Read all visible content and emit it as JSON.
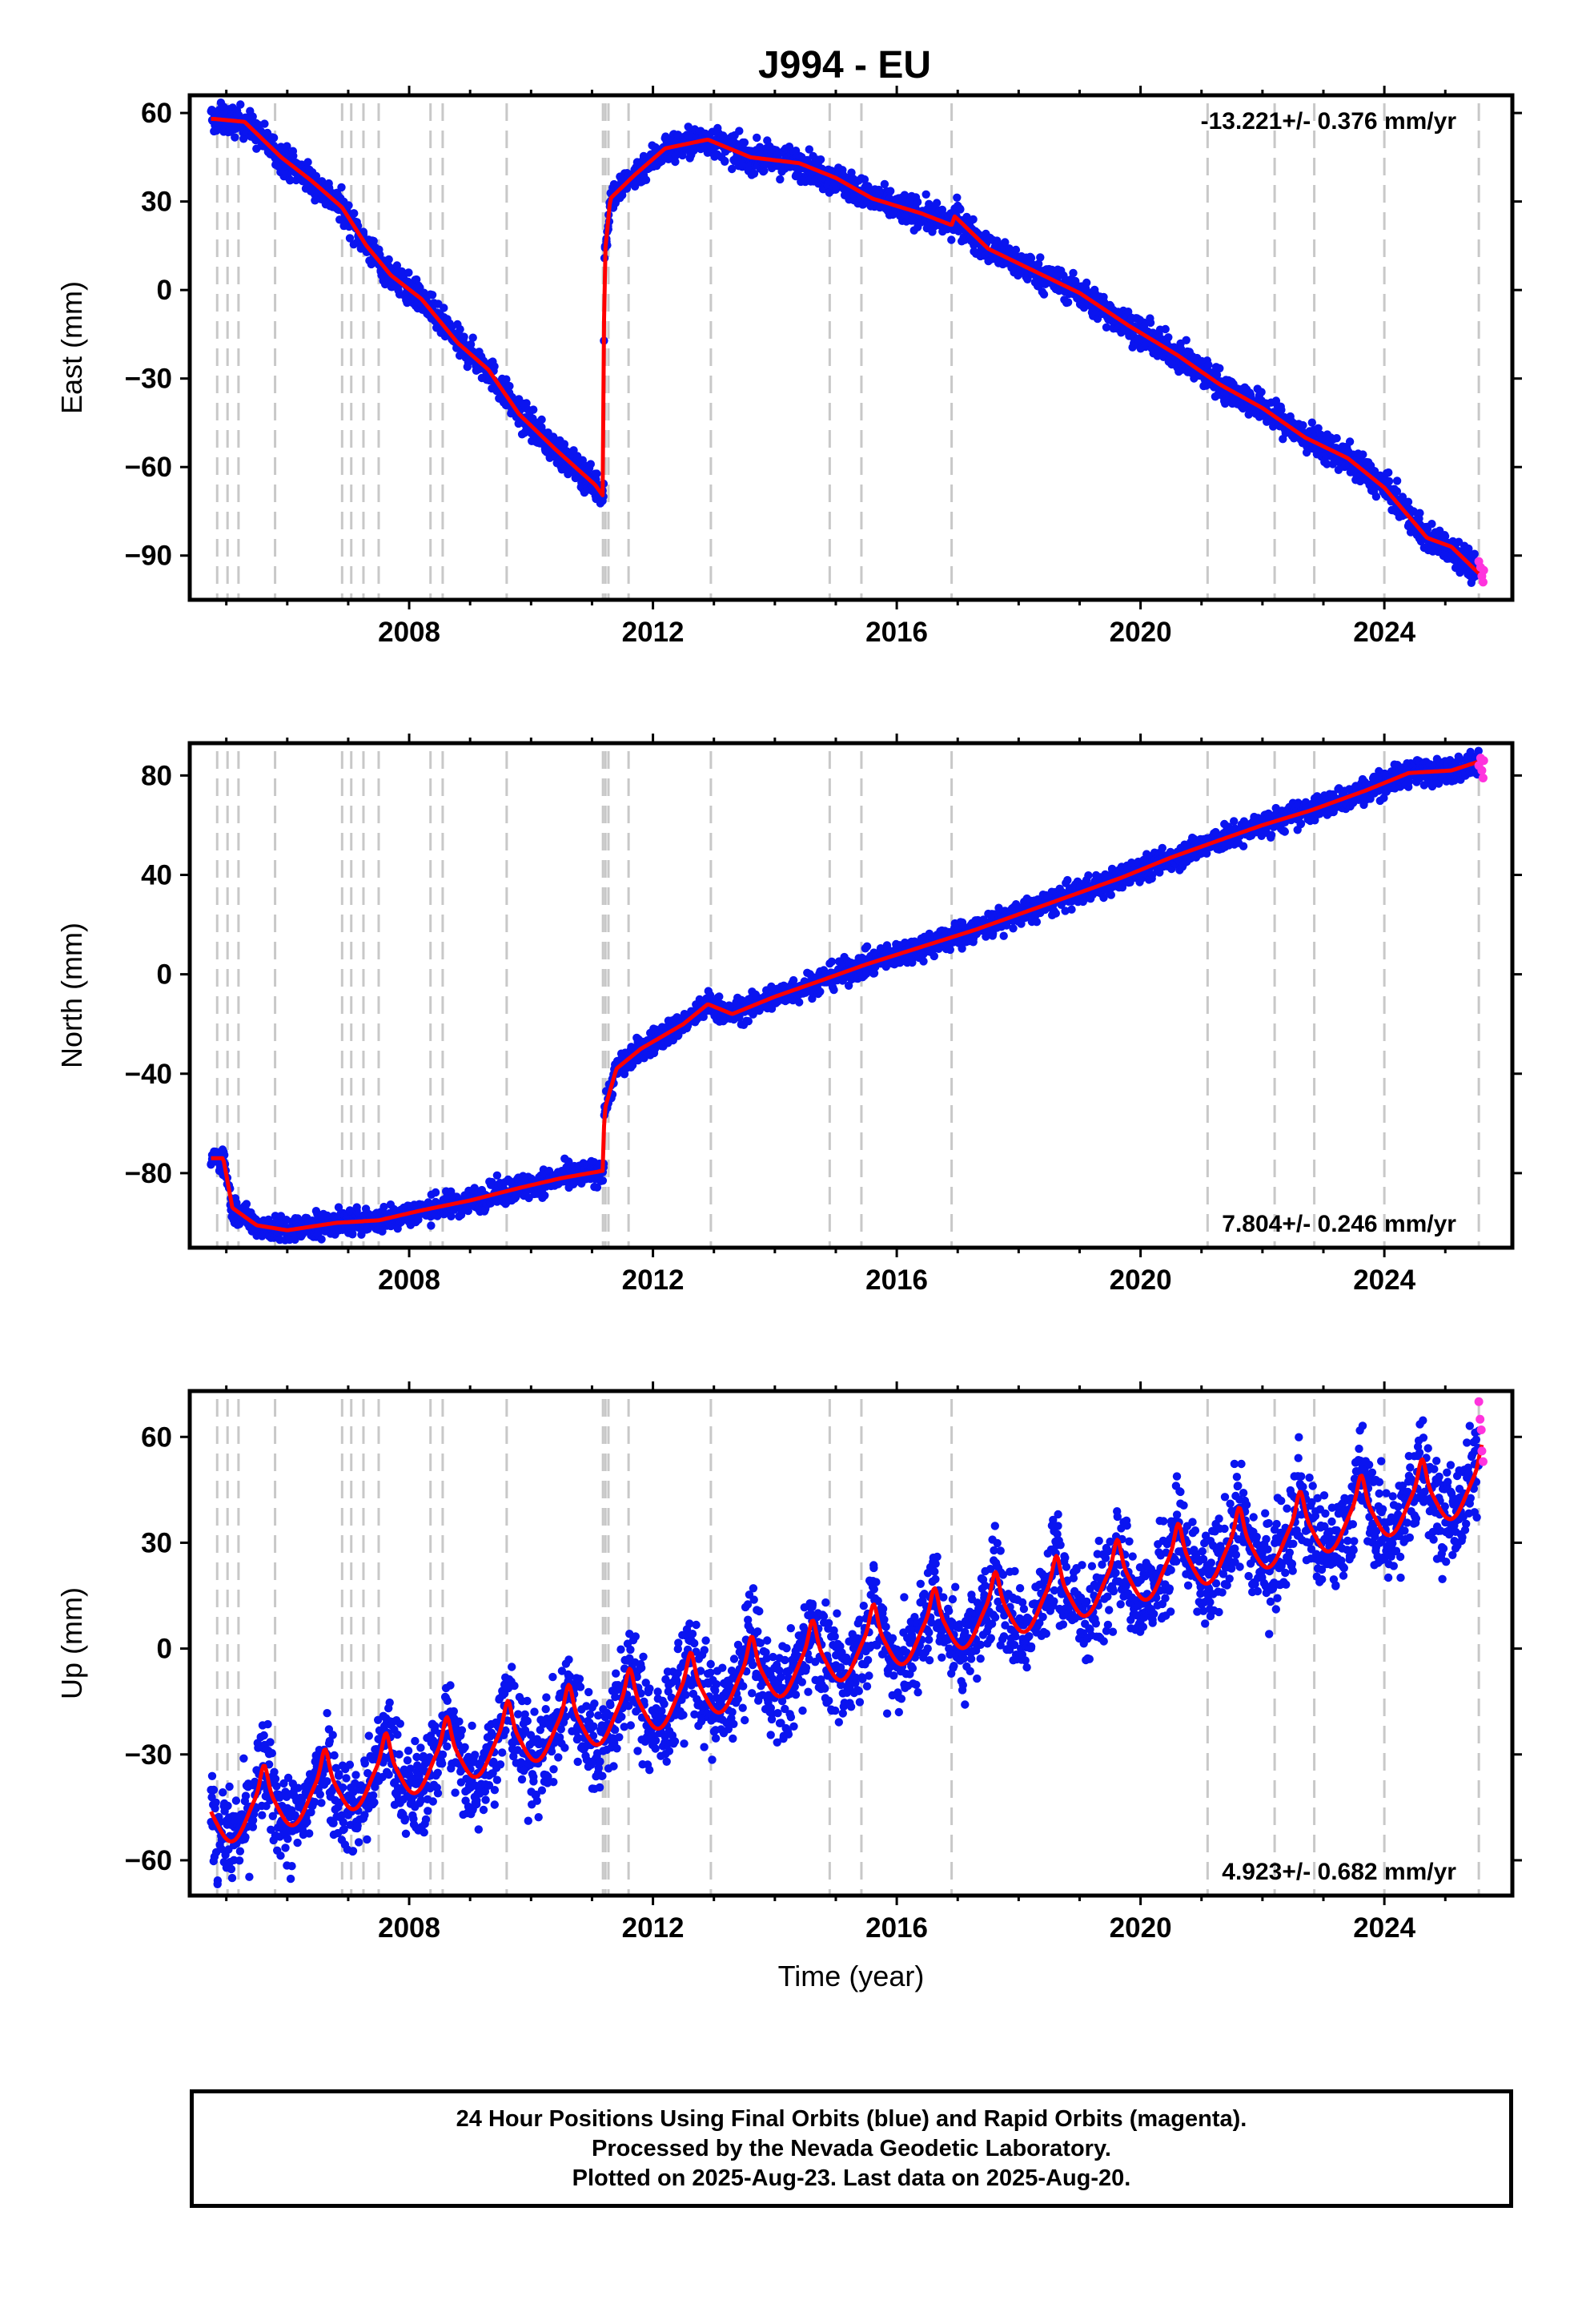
{
  "title": "J994 - EU",
  "chart_data": [
    {
      "type": "scatter",
      "ylabel": "East (mm)",
      "xlabel": "",
      "xlim": [
        2004.4,
        2026.1
      ],
      "ylim": [
        -105,
        66
      ],
      "xticks": [
        2008,
        2012,
        2016,
        2020,
        2024
      ],
      "yticks": [
        60,
        30,
        0,
        -30,
        -60,
        -90
      ],
      "rate_text": "-13.221+/- 0.376 mm/yr",
      "rate_position": "top-right",
      "scatter_spread": 2.5,
      "model": [
        [
          2004.8,
          58
        ],
        [
          2005.3,
          57
        ],
        [
          2005.9,
          45
        ],
        [
          2006.4,
          37
        ],
        [
          2006.9,
          28
        ],
        [
          2007.3,
          15
        ],
        [
          2007.7,
          5
        ],
        [
          2008.2,
          -3
        ],
        [
          2008.8,
          -18
        ],
        [
          2009.3,
          -27
        ],
        [
          2009.8,
          -42
        ],
        [
          2010.4,
          -54
        ],
        [
          2011.05,
          -66
        ],
        [
          2011.19,
          -70
        ],
        [
          2011.2,
          10
        ],
        [
          2011.3,
          31
        ],
        [
          2011.7,
          39
        ],
        [
          2012.2,
          48
        ],
        [
          2012.9,
          51
        ],
        [
          2013.6,
          45
        ],
        [
          2014.4,
          43
        ],
        [
          2015.0,
          38
        ],
        [
          2015.6,
          31
        ],
        [
          2016.4,
          26
        ],
        [
          2016.9,
          22
        ],
        [
          2016.95,
          25
        ],
        [
          2017.5,
          14
        ],
        [
          2018.3,
          6
        ],
        [
          2019.0,
          -1
        ],
        [
          2019.8,
          -12
        ],
        [
          2020.6,
          -22
        ],
        [
          2021.3,
          -32
        ],
        [
          2022.0,
          -40
        ],
        [
          2022.7,
          -50
        ],
        [
          2023.4,
          -57
        ],
        [
          2024.0,
          -67
        ],
        [
          2024.7,
          -84
        ],
        [
          2025.1,
          -87
        ],
        [
          2025.6,
          -97
        ]
      ],
      "rapid_orbit_points": [
        [
          2025.55,
          -92
        ],
        [
          2025.58,
          -94
        ],
        [
          2025.6,
          -97
        ],
        [
          2025.62,
          -99
        ],
        [
          2025.63,
          -95
        ]
      ]
    },
    {
      "type": "scatter",
      "ylabel": "North (mm)",
      "xlabel": "",
      "xlim": [
        2004.4,
        2026.1
      ],
      "ylim": [
        -110,
        93
      ],
      "xticks": [
        2008,
        2012,
        2016,
        2020,
        2024
      ],
      "yticks": [
        80,
        40,
        0,
        -40,
        -80
      ],
      "rate_text": "7.804+/- 0.246 mm/yr",
      "rate_position": "bottom-right",
      "scatter_spread": 2.5,
      "model": [
        [
          2004.8,
          -74
        ],
        [
          2004.95,
          -74
        ],
        [
          2005.1,
          -94
        ],
        [
          2005.5,
          -101
        ],
        [
          2006.0,
          -103
        ],
        [
          2006.8,
          -100
        ],
        [
          2007.5,
          -99
        ],
        [
          2008.2,
          -95
        ],
        [
          2009.0,
          -91
        ],
        [
          2009.8,
          -86
        ],
        [
          2010.5,
          -82
        ],
        [
          2011.19,
          -79
        ],
        [
          2011.2,
          -55
        ],
        [
          2011.4,
          -38
        ],
        [
          2011.8,
          -30
        ],
        [
          2012.5,
          -20
        ],
        [
          2012.9,
          -12
        ],
        [
          2013.3,
          -16
        ],
        [
          2014.0,
          -9
        ],
        [
          2014.7,
          -3
        ],
        [
          2015.5,
          4
        ],
        [
          2016.4,
          11
        ],
        [
          2017.3,
          18
        ],
        [
          2018.1,
          25
        ],
        [
          2018.9,
          32
        ],
        [
          2019.7,
          39
        ],
        [
          2020.5,
          47
        ],
        [
          2021.3,
          54
        ],
        [
          2022.0,
          60
        ],
        [
          2022.8,
          66
        ],
        [
          2023.7,
          74
        ],
        [
          2024.4,
          81
        ],
        [
          2025.1,
          82
        ],
        [
          2025.6,
          86
        ]
      ],
      "rapid_orbit_points": [
        [
          2025.55,
          84
        ],
        [
          2025.58,
          87
        ],
        [
          2025.6,
          82
        ],
        [
          2025.62,
          79
        ],
        [
          2025.63,
          86
        ]
      ]
    },
    {
      "type": "scatter",
      "ylabel": "Up (mm)",
      "xlabel": "Time (year)",
      "xlim": [
        2004.4,
        2026.1
      ],
      "ylim": [
        -70,
        73
      ],
      "xticks": [
        2008,
        2012,
        2016,
        2020,
        2024
      ],
      "yticks": [
        60,
        30,
        0,
        -30,
        -60
      ],
      "rate_text": "4.923+/- 0.682 mm/yr",
      "rate_position": "bottom-right",
      "scatter_spread": 7,
      "model_trend": [
        [
          2004.8,
          -50
        ],
        [
          2025.6,
          45
        ]
      ],
      "seasonal_amplitude": 6,
      "rapid_orbit_points": [
        [
          2025.55,
          70
        ],
        [
          2025.57,
          65
        ],
        [
          2025.59,
          62
        ],
        [
          2025.6,
          56
        ],
        [
          2025.62,
          53
        ]
      ]
    }
  ],
  "offset_lines": [
    2004.85,
    2005.02,
    2005.2,
    2005.8,
    2006.9,
    2007.05,
    2007.25,
    2007.5,
    2008.35,
    2008.55,
    2009.6,
    2011.18,
    2011.22,
    2011.27,
    2011.6,
    2012.95,
    2014.9,
    2015.42,
    2016.9,
    2021.1,
    2022.2,
    2022.85,
    2024.0,
    2025.55
  ],
  "colors": {
    "final_orbits": "#0a14f0",
    "rapid_orbits": "#ff33dd",
    "model_line": "#ff0000",
    "offset_line": "#c8c8c8",
    "axes": "#000000"
  },
  "footer": {
    "line1": "24 Hour Positions Using Final Orbits (blue) and Rapid Orbits (magenta).",
    "line2": "Processed by the Nevada Geodetic Laboratory.",
    "line3": "Plotted on 2025-Aug-23. Last data on 2025-Aug-20."
  }
}
